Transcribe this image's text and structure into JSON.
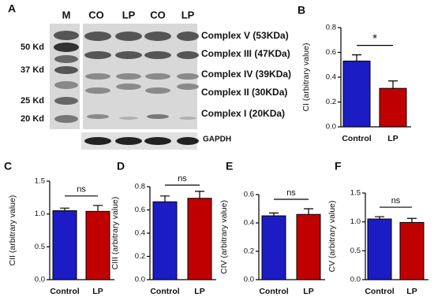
{
  "blot": {
    "panel": "A",
    "lanes": [
      "M",
      "CO",
      "LP",
      "CO",
      "LP"
    ],
    "markers": [
      "50 Kd",
      "37 Kd",
      "25 Kd",
      "20 Kd"
    ],
    "complexes": [
      "Complex V (53KDa)",
      "Complex III (47KDa)",
      "Complex IV (39KDa)",
      "Complex II (30KDa)",
      "Complex I (20KDa)"
    ],
    "loading_control": "GAPDH"
  },
  "chart_data": [
    {
      "type": "bar",
      "panel": "B",
      "ylabel": "CI (arbitrary value)",
      "categories": [
        "Control",
        "LP"
      ],
      "values": [
        0.53,
        0.31
      ],
      "errors": [
        0.05,
        0.06
      ],
      "colors": [
        "#1c1cc4",
        "#c00000"
      ],
      "ylim": [
        0,
        0.8
      ],
      "yticks": [
        {
          "value": 0,
          "label": "0.0"
        },
        0.2,
        0.4,
        0.6,
        0.8
      ],
      "significance": "*"
    },
    {
      "type": "bar",
      "panel": "C",
      "ylabel": "CII (arbitrary value)",
      "categories": [
        "Control",
        "LP"
      ],
      "values": [
        1.05,
        1.04
      ],
      "errors": [
        0.04,
        0.09
      ],
      "colors": [
        "#1c1cc4",
        "#c00000"
      ],
      "ylim": [
        0,
        1.5
      ],
      "yticks": [
        {
          "value": 0,
          "label": "0.0"
        },
        0.5,
        {
          "value": 1,
          "label": "1.0"
        },
        1.5
      ],
      "significance": "ns"
    },
    {
      "type": "bar",
      "panel": "D",
      "ylabel": "CIII (arbitrary value)",
      "categories": [
        "Control",
        "LP"
      ],
      "values": [
        0.67,
        0.7
      ],
      "errors": [
        0.05,
        0.06
      ],
      "colors": [
        "#1c1cc4",
        "#c00000"
      ],
      "ylim": [
        0,
        0.8
      ],
      "yticks": [
        {
          "value": 0,
          "label": "0.0"
        },
        0.2,
        0.4,
        0.6,
        0.8
      ],
      "significance": "ns"
    },
    {
      "type": "bar",
      "panel": "E",
      "ylabel": "CIV (arbitrary value)",
      "categories": [
        "Control",
        "LP"
      ],
      "values": [
        0.45,
        0.46
      ],
      "errors": [
        0.02,
        0.04
      ],
      "colors": [
        "#1c1cc4",
        "#c00000"
      ],
      "ylim": [
        0,
        0.6
      ],
      "yticks": [
        {
          "value": 0,
          "label": "0.0"
        },
        0.2,
        0.4,
        0.6
      ],
      "significance": "ns"
    },
    {
      "type": "bar",
      "panel": "F",
      "ylabel": "CV (arbitrary value)",
      "categories": [
        "Control",
        "LP"
      ],
      "values": [
        1.05,
        0.99
      ],
      "errors": [
        0.04,
        0.07
      ],
      "colors": [
        "#1c1cc4",
        "#c00000"
      ],
      "ylim": [
        0,
        1.5
      ],
      "yticks": [
        {
          "value": 0,
          "label": "0.0"
        },
        0.5,
        {
          "value": 1,
          "label": "1.0"
        },
        1.5
      ],
      "significance": "ns"
    }
  ]
}
